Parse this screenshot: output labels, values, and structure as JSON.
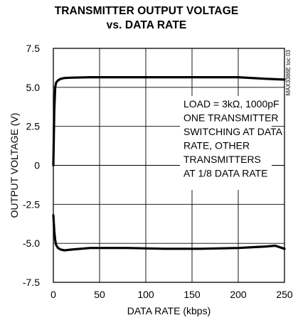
{
  "chart_data": {
    "type": "line",
    "title": [
      "TRANSMITTER OUTPUT VOLTAGE",
      "vs. DATA RATE"
    ],
    "xlabel": "DATA RATE (kbps)",
    "ylabel": "OUTPUT VOLTAGE (V)",
    "xlim": [
      0,
      250
    ],
    "ylim": [
      -7.5,
      7.5
    ],
    "x_ticks": [
      0,
      50,
      100,
      150,
      200,
      250
    ],
    "y_ticks": [
      7.5,
      5.0,
      2.5,
      0,
      -2.5,
      -5.0,
      -7.5
    ],
    "x_tick_labels": [
      "0",
      "50",
      "100",
      "150",
      "200",
      "250"
    ],
    "y_tick_labels": [
      "7.5",
      "5.0",
      "2.5",
      "0",
      "-2.5",
      "-5.0",
      "-7.5"
    ],
    "grid": true,
    "series": [
      {
        "x": [
          0,
          1,
          2,
          3,
          5,
          8,
          12,
          20,
          40,
          80,
          120,
          160,
          200,
          230,
          250
        ],
        "y": [
          0,
          3.5,
          5.0,
          5.3,
          5.45,
          5.55,
          5.6,
          5.62,
          5.65,
          5.65,
          5.65,
          5.65,
          5.65,
          5.55,
          5.5
        ]
      },
      {
        "x": [
          0,
          1,
          2,
          3,
          5,
          8,
          12,
          20,
          40,
          80,
          120,
          160,
          200,
          230,
          240,
          250
        ],
        "y": [
          -3.2,
          -4.2,
          -4.8,
          -5.1,
          -5.3,
          -5.4,
          -5.45,
          -5.4,
          -5.3,
          -5.3,
          -5.35,
          -5.35,
          -5.3,
          -5.2,
          -5.15,
          -5.35
        ]
      }
    ],
    "annotations": [
      "LOAD = 3kΩ, 1000pF",
      "ONE TRANSMITTER",
      "SWITCHING AT DATA",
      "RATE, OTHER",
      "TRANSMITTERS",
      "AT 1/8 DATA RATE"
    ],
    "figure_code": "MAX3386E toc 03"
  }
}
